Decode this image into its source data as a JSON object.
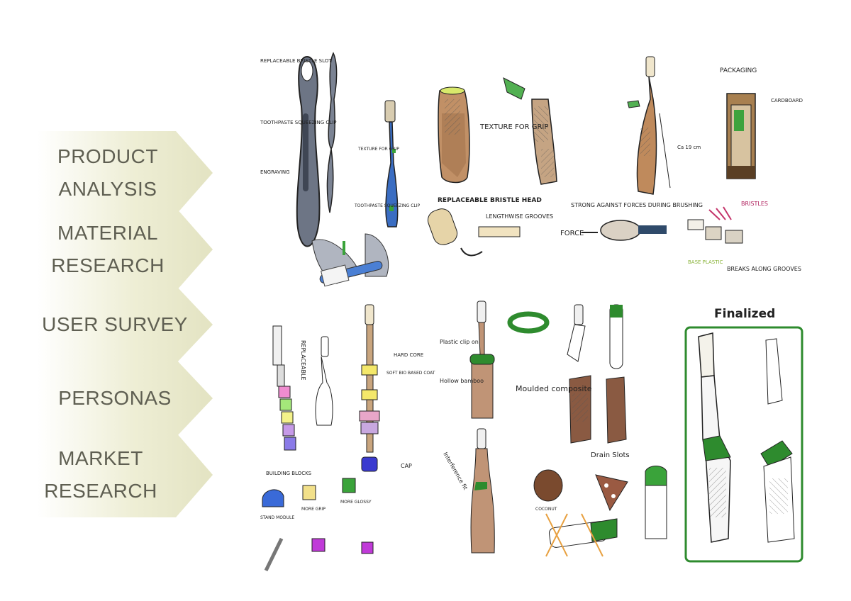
{
  "nav": {
    "items": [
      {
        "label_1": "PRODUCT",
        "label_2": "ANALYSIS"
      },
      {
        "label_1": "MATERIAL",
        "label_2": "RESEARCH"
      },
      {
        "label_1": "USER SURVEY",
        "label_2": ""
      },
      {
        "label_1": "PERSONAS",
        "label_2": ""
      },
      {
        "label_1": "MARKET",
        "label_2": "RESEARCH"
      }
    ]
  },
  "sketch": {
    "labels": {
      "bristle_slot": "REPLACEABLE BRISTLE SLOT",
      "squeezing_clip": "TOOTHPASTE SQUEEZING CLIP",
      "engraving": "ENGRAVING",
      "texture_grip_small": "TEXTURE FOR GRIP",
      "squeezing_clip_small": "TOOTHPASTE SQUEEZING CLIP",
      "texture_for_grip": "TEXTURE FOR GRIP",
      "length": "Ca 19 cm",
      "packaging": "PACKAGING",
      "cardboard": "CARDBOARD",
      "replaceable_head": "REPLACEABLE BRISTLE HEAD",
      "lengthwise_grooves": "LENGTHWISE GROOVES",
      "strong_against": "STRONG AGAINST FORCES DURING BRUSHING",
      "force": "FORCE",
      "bristles": "BRISTLES",
      "base_plastic": "BASE PLASTIC",
      "breaks_along": "BREAKS ALONG GROOVES",
      "replaceable": "REPLACEABLE",
      "hard_core": "HARD CORE",
      "soft_coat": "SOFT BIO BASED COAT",
      "cap": "CAP",
      "building_blocks": "BUILDING BLOCKS",
      "stand_module": "STAND MODULE",
      "more_grip": "MORE GRIP",
      "more_glossy": "MORE GLOSSY",
      "plastic_clip": "Plastic clip on",
      "hollow_bamboo": "Hollow bamboo",
      "interference_fit": "Interference fit",
      "moulded_composite": "Moulded composite",
      "drain_slots": "Drain Slots",
      "coconut": "COCONUT",
      "finalized": "Finalized"
    }
  },
  "colors": {
    "nav_fill": "#e9e9cc",
    "nav_text": "#5f5f52",
    "accent_green": "#2e8b2e",
    "bamboo": "#b08060"
  }
}
